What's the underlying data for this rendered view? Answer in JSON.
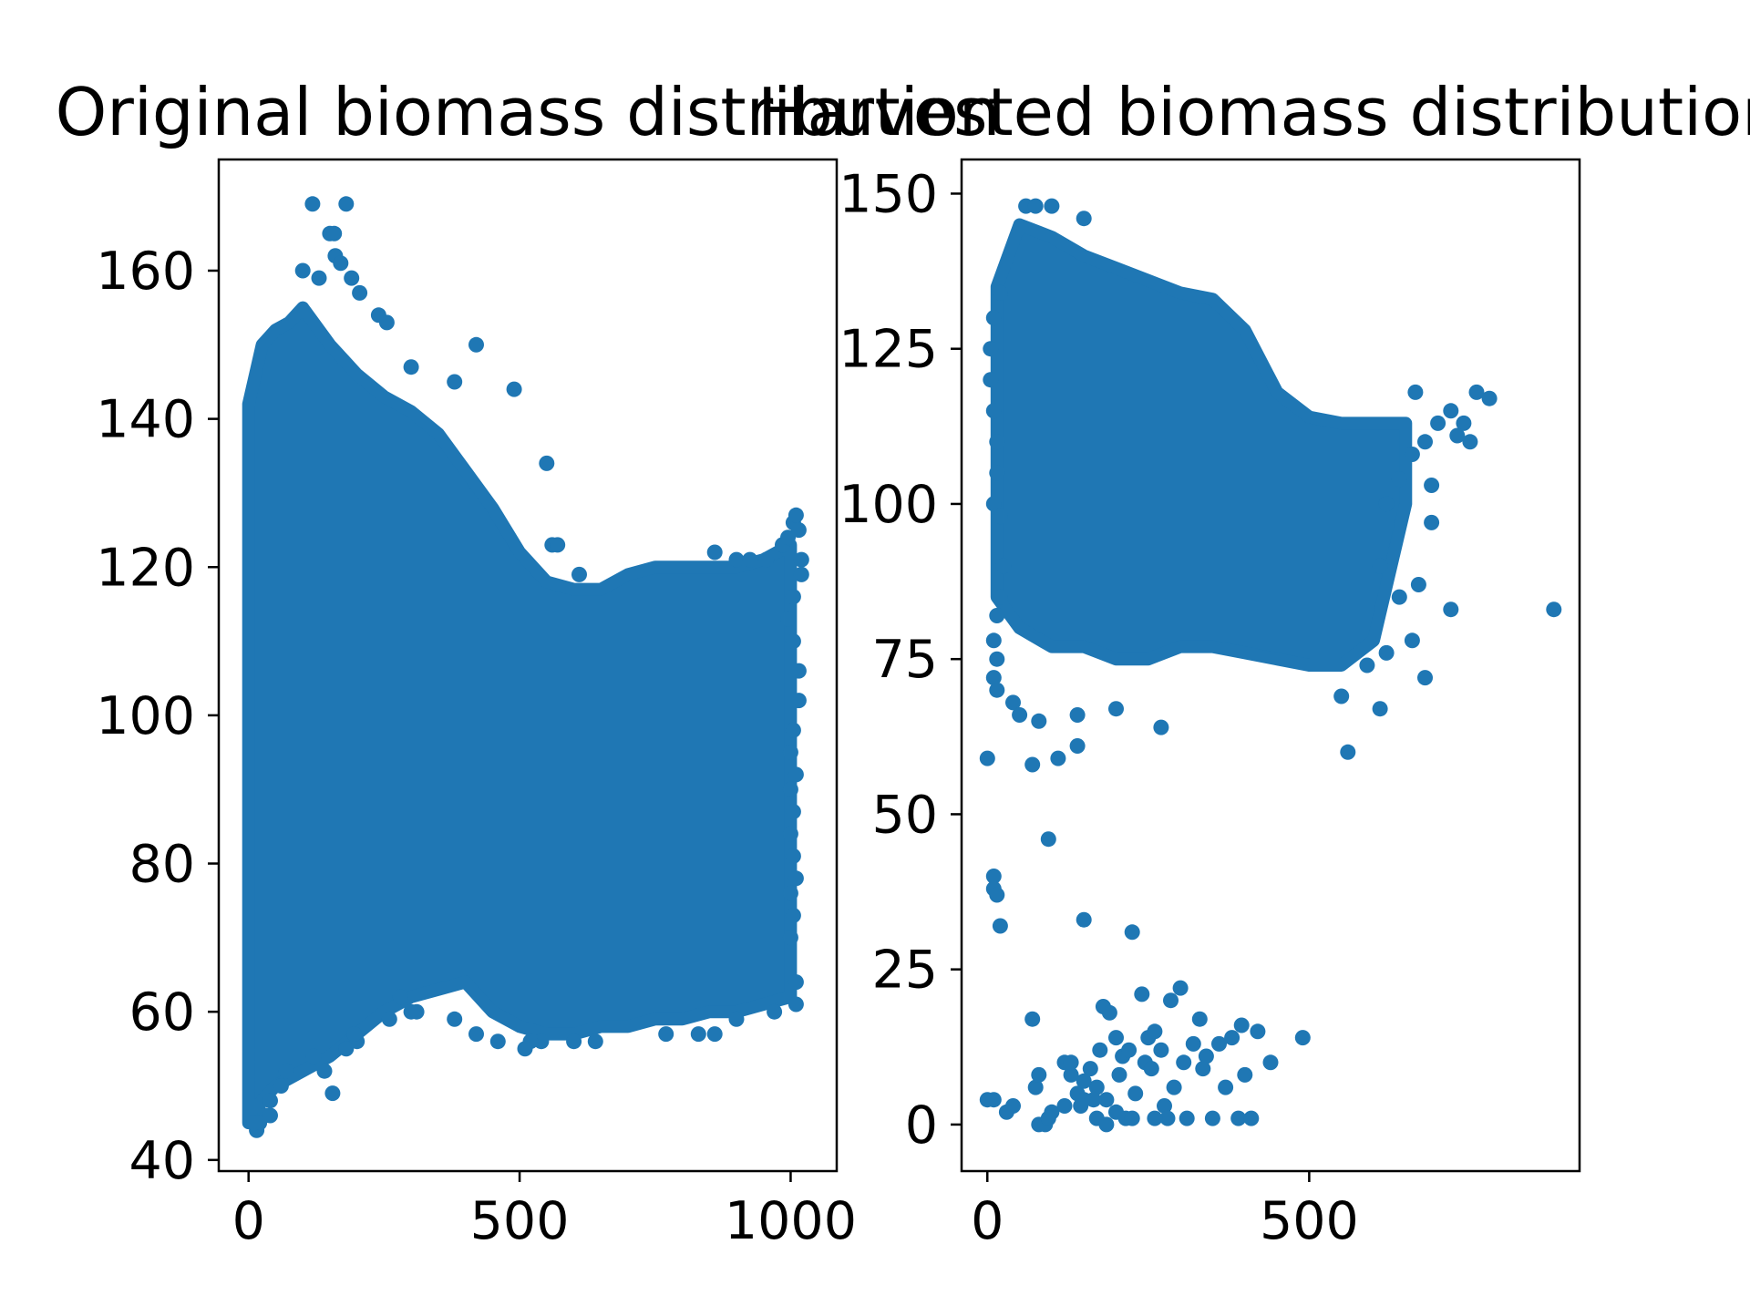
{
  "chart_data": [
    {
      "type": "scatter",
      "title": "Original biomass distribution",
      "xlabel": "",
      "ylabel": "",
      "xlim": [
        -55,
        1085
      ],
      "ylim": [
        38.5,
        175
      ],
      "xticks": [
        0,
        500,
        1000
      ],
      "xtick_labels": [
        "0",
        "500",
        "1000"
      ],
      "yticks": [
        40,
        60,
        80,
        100,
        120,
        140,
        160
      ],
      "ytick_labels": [
        "40",
        "60",
        "80",
        "100",
        "120",
        "140",
        "160"
      ],
      "grid": false,
      "legend": "none",
      "series": [
        {
          "color": "#1f77b4",
          "dense_band": {
            "x": [
              0,
              25,
              50,
              75,
              100,
              150,
              200,
              250,
              300,
              350,
              400,
              450,
              500,
              550,
              600,
              650,
              700,
              750,
              800,
              850,
              900,
              950,
              1000
            ],
            "ymin": [
              45,
              48,
              50,
              51,
              52,
              54,
              57,
              60,
              62,
              63,
              64,
              60,
              58,
              57,
              57,
              58,
              58,
              59,
              59,
              60,
              60,
              61,
              62
            ],
            "ymax": [
              142,
              150,
              152,
              153,
              155,
              150,
              146,
              143,
              141,
              138,
              133,
              128,
              122,
              118,
              117,
              117,
              119,
              120,
              120,
              120,
              120,
              121,
              123
            ]
          },
          "points": [
            [
              118,
              169
            ],
            [
              180,
              169
            ],
            [
              150,
              165
            ],
            [
              158,
              165
            ],
            [
              160,
              162
            ],
            [
              170,
              161
            ],
            [
              100,
              160
            ],
            [
              130,
              159
            ],
            [
              190,
              159
            ],
            [
              205,
              157
            ],
            [
              240,
              154
            ],
            [
              255,
              153
            ],
            [
              420,
              150
            ],
            [
              490,
              144
            ],
            [
              300,
              147
            ],
            [
              380,
              145
            ],
            [
              550,
              134
            ],
            [
              560,
              123
            ],
            [
              570,
              123
            ],
            [
              610,
              119
            ],
            [
              860,
              122
            ],
            [
              900,
              121
            ],
            [
              925,
              121
            ],
            [
              955,
              121
            ],
            [
              985,
              123
            ],
            [
              995,
              124
            ],
            [
              1005,
              126
            ],
            [
              1010,
              127
            ],
            [
              1015,
              125
            ],
            [
              1020,
              121
            ],
            [
              1020,
              119
            ],
            [
              1005,
              116
            ],
            [
              995,
              113
            ],
            [
              1005,
              110
            ],
            [
              1015,
              106
            ],
            [
              1015,
              102
            ],
            [
              1005,
              98
            ],
            [
              1000,
              95
            ],
            [
              1010,
              92
            ],
            [
              1000,
              90
            ],
            [
              1005,
              87
            ],
            [
              1000,
              84
            ],
            [
              1005,
              81
            ],
            [
              1010,
              78
            ],
            [
              1000,
              76
            ],
            [
              1005,
              73
            ],
            [
              1000,
              70
            ],
            [
              1010,
              64
            ],
            [
              1010,
              61
            ],
            [
              970,
              60
            ],
            [
              900,
              59
            ],
            [
              860,
              57
            ],
            [
              830,
              57
            ],
            [
              770,
              57
            ],
            [
              640,
              56
            ],
            [
              600,
              56
            ],
            [
              540,
              56
            ],
            [
              520,
              56
            ],
            [
              510,
              55
            ],
            [
              460,
              56
            ],
            [
              420,
              57
            ],
            [
              380,
              59
            ],
            [
              300,
              60
            ],
            [
              310,
              60
            ],
            [
              260,
              59
            ],
            [
              280,
              62
            ],
            [
              200,
              56
            ],
            [
              195,
              57
            ],
            [
              180,
              55
            ],
            [
              120,
              54
            ],
            [
              140,
              52
            ],
            [
              70,
              52
            ],
            [
              60,
              50
            ],
            [
              40,
              48
            ],
            [
              30,
              46
            ],
            [
              20,
              45
            ],
            [
              15,
              44
            ],
            [
              10,
              45
            ],
            [
              40,
              46
            ],
            [
              155,
              49
            ]
          ]
        }
      ]
    },
    {
      "type": "scatter",
      "title": "Harvested biomass distribution",
      "xlabel": "",
      "ylabel": "",
      "xlim": [
        -40,
        920
      ],
      "ylim": [
        -7.5,
        155.5
      ],
      "xticks": [
        0,
        500
      ],
      "xtick_labels": [
        "0",
        "500"
      ],
      "yticks": [
        0,
        25,
        50,
        75,
        100,
        125,
        150
      ],
      "ytick_labels": [
        "0",
        "25",
        "50",
        "75",
        "100",
        "125",
        "150"
      ],
      "grid": false,
      "legend": "none",
      "series": [
        {
          "color": "#1f77b4",
          "dense_band": {
            "x": [
              15,
              50,
              100,
              150,
              200,
              250,
              300,
              350,
              400,
              450,
              500,
              550,
              600,
              650
            ],
            "ymin": [
              85,
              80,
              77,
              77,
              75,
              75,
              77,
              77,
              76,
              75,
              74,
              74,
              78,
              100
            ],
            "ymax": [
              135,
              145,
              143,
              140,
              138,
              136,
              134,
              133,
              128,
              118,
              114,
              113,
              113,
              113
            ]
          },
          "points": [
            [
              60,
              148
            ],
            [
              100,
              148
            ],
            [
              75,
              148
            ],
            [
              150,
              146
            ],
            [
              20,
              134
            ],
            [
              10,
              130
            ],
            [
              5,
              125
            ],
            [
              5,
              120
            ],
            [
              10,
              115
            ],
            [
              15,
              110
            ],
            [
              15,
              105
            ],
            [
              10,
              100
            ],
            [
              20,
              98
            ],
            [
              25,
              90
            ],
            [
              20,
              85
            ],
            [
              15,
              82
            ],
            [
              10,
              78
            ],
            [
              15,
              75
            ],
            [
              10,
              72
            ],
            [
              15,
              70
            ],
            [
              40,
              68
            ],
            [
              50,
              66
            ],
            [
              80,
              65
            ],
            [
              140,
              66
            ],
            [
              200,
              67
            ],
            [
              270,
              64
            ],
            [
              140,
              61
            ],
            [
              110,
              59
            ],
            [
              70,
              58
            ],
            [
              0,
              59
            ],
            [
              560,
              60
            ],
            [
              610,
              67
            ],
            [
              550,
              69
            ],
            [
              590,
              74
            ],
            [
              620,
              76
            ],
            [
              660,
              78
            ],
            [
              680,
              72
            ],
            [
              720,
              83
            ],
            [
              880,
              83
            ],
            [
              690,
              97
            ],
            [
              670,
              87
            ],
            [
              640,
              85
            ],
            [
              610,
              90
            ],
            [
              620,
              100
            ],
            [
              640,
              104
            ],
            [
              660,
              108
            ],
            [
              680,
              110
            ],
            [
              700,
              113
            ],
            [
              720,
              115
            ],
            [
              740,
              113
            ],
            [
              760,
              118
            ],
            [
              780,
              117
            ],
            [
              665,
              118
            ],
            [
              730,
              111
            ],
            [
              750,
              110
            ],
            [
              690,
              103
            ],
            [
              95,
              46
            ],
            [
              10,
              40
            ],
            [
              10,
              38
            ],
            [
              15,
              37
            ],
            [
              20,
              32
            ],
            [
              150,
              33
            ],
            [
              225,
              31
            ],
            [
              0,
              4
            ],
            [
              10,
              4
            ],
            [
              40,
              3
            ],
            [
              30,
              2
            ],
            [
              80,
              0
            ],
            [
              90,
              0
            ],
            [
              100,
              2
            ],
            [
              75,
              6
            ],
            [
              80,
              8
            ],
            [
              70,
              17
            ],
            [
              120,
              10
            ],
            [
              130,
              8
            ],
            [
              140,
              5
            ],
            [
              150,
              4
            ],
            [
              160,
              9
            ],
            [
              170,
              6
            ],
            [
              175,
              12
            ],
            [
              180,
              19
            ],
            [
              190,
              18
            ],
            [
              200,
              14
            ],
            [
              205,
              8
            ],
            [
              210,
              11
            ],
            [
              220,
              12
            ],
            [
              230,
              5
            ],
            [
              240,
              21
            ],
            [
              245,
              10
            ],
            [
              250,
              14
            ],
            [
              255,
              9
            ],
            [
              260,
              15
            ],
            [
              270,
              12
            ],
            [
              275,
              3
            ],
            [
              280,
              1
            ],
            [
              285,
              20
            ],
            [
              290,
              6
            ],
            [
              300,
              22
            ],
            [
              305,
              10
            ],
            [
              310,
              1
            ],
            [
              320,
              13
            ],
            [
              330,
              17
            ],
            [
              335,
              9
            ],
            [
              340,
              11
            ],
            [
              350,
              1
            ],
            [
              360,
              13
            ],
            [
              370,
              6
            ],
            [
              380,
              14
            ],
            [
              390,
              1
            ],
            [
              395,
              16
            ],
            [
              400,
              8
            ],
            [
              410,
              1
            ],
            [
              420,
              15
            ],
            [
              440,
              10
            ],
            [
              490,
              14
            ],
            [
              130,
              10
            ],
            [
              150,
              7
            ],
            [
              185,
              4
            ],
            [
              200,
              2
            ],
            [
              215,
              1
            ],
            [
              225,
              1
            ],
            [
              170,
              1
            ],
            [
              185,
              0
            ],
            [
              120,
              3
            ],
            [
              95,
              1
            ],
            [
              145,
              3
            ],
            [
              165,
              4
            ],
            [
              260,
              1
            ]
          ]
        }
      ]
    }
  ]
}
